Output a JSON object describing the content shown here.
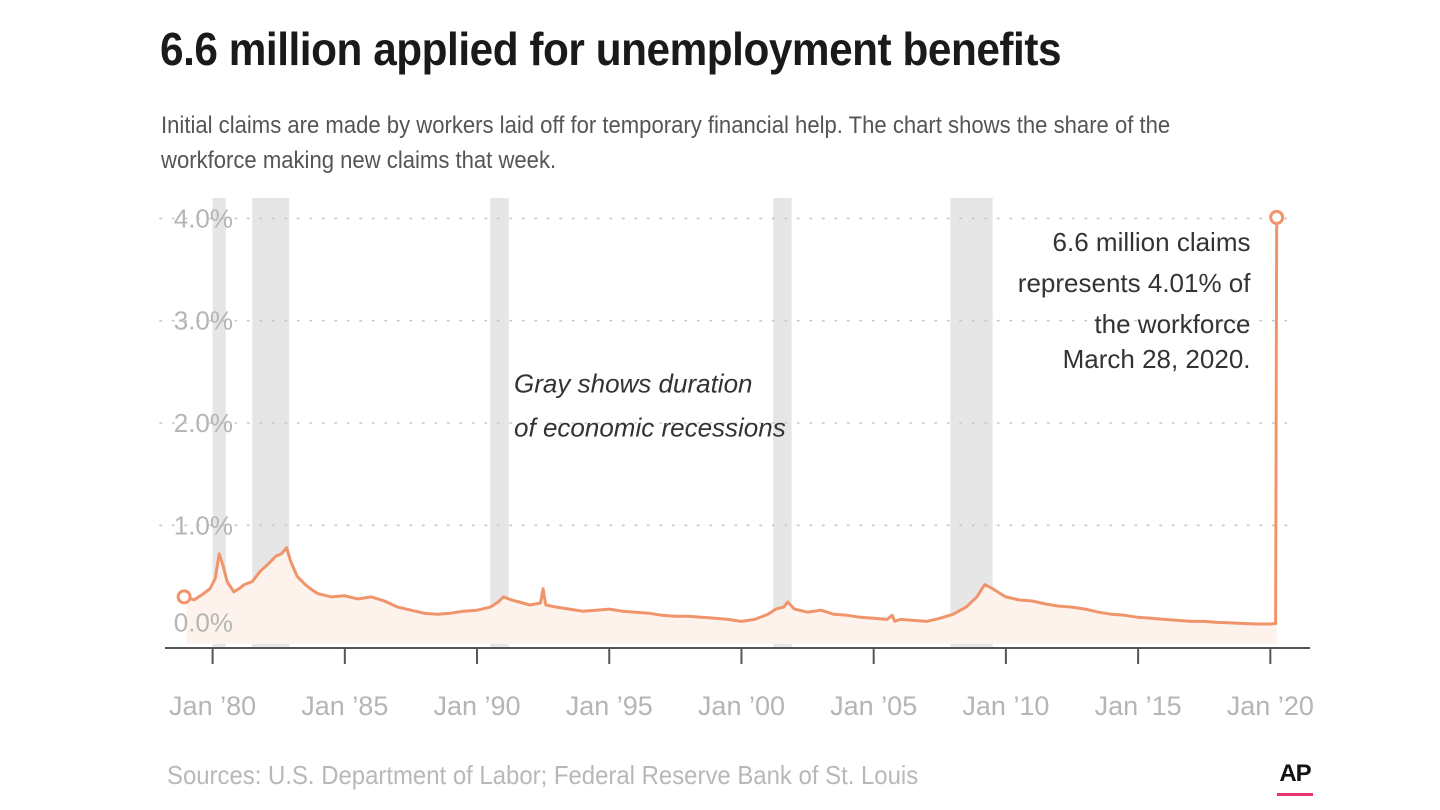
{
  "header": {
    "title": "6.6 million applied for unemployment benefits",
    "subtitle": "Initial claims are made by workers laid off for temporary financial help. The chart shows the share of the  workforce making new claims that week."
  },
  "footer": {
    "source": "Sources: U.S. Department of Labor; Federal Reserve Bank of St. Louis",
    "logo": "AP"
  },
  "colors": {
    "line": "#f0956b",
    "area": "#fdf3ec",
    "recession": "#e6e6e6",
    "grid": "#c8c8c8",
    "axis_text": "#b5b5b5",
    "annotation_text": "#333333"
  },
  "chart_data": {
    "type": "line",
    "xlabel": "",
    "ylabel": "",
    "xlim": [
      1978.2,
      2021.5
    ],
    "ylim": [
      -0.2,
      4.2
    ],
    "y_ticks": [
      {
        "value": 0,
        "label": "0.0%"
      },
      {
        "value": 1,
        "label": "1.0%"
      },
      {
        "value": 2,
        "label": "2.0%"
      },
      {
        "value": 3,
        "label": "3.0%"
      },
      {
        "value": 4,
        "label": "4.0%"
      }
    ],
    "x_ticks": [
      {
        "value": 1980,
        "label": "Jan ’80"
      },
      {
        "value": 1985,
        "label": "Jan ’85"
      },
      {
        "value": 1990,
        "label": "Jan ’90"
      },
      {
        "value": 1995,
        "label": "Jan ’95"
      },
      {
        "value": 2000,
        "label": "Jan ’00"
      },
      {
        "value": 2005,
        "label": "Jan ’05"
      },
      {
        "value": 2010,
        "label": "Jan ’10"
      },
      {
        "value": 2015,
        "label": "Jan ’15"
      },
      {
        "value": 2020,
        "label": "Jan ’20"
      }
    ],
    "grid": true,
    "recessions": [
      {
        "start": 1980.0,
        "end": 1980.5
      },
      {
        "start": 1981.5,
        "end": 1982.9
      },
      {
        "start": 1990.5,
        "end": 1991.2
      },
      {
        "start": 2001.2,
        "end": 2001.9
      },
      {
        "start": 2007.9,
        "end": 2009.5
      }
    ],
    "series": [
      {
        "x": [
          1979.0,
          1979.3,
          1979.6,
          1979.9,
          1980.1,
          1980.25,
          1980.4,
          1980.55,
          1980.8,
          1981.0,
          1981.2,
          1981.5,
          1981.8,
          1982.1,
          1982.4,
          1982.6,
          1982.8,
          1982.95,
          1983.2,
          1983.5,
          1983.8,
          1984.0,
          1984.5,
          1985.0,
          1985.5,
          1986.0,
          1986.5,
          1987.0,
          1987.5,
          1988.0,
          1988.5,
          1989.0,
          1989.5,
          1990.0,
          1990.5,
          1990.8,
          1991.0,
          1991.3,
          1991.6,
          1992.0,
          1992.4,
          1992.5,
          1992.6,
          1993.0,
          1993.5,
          1994.0,
          1994.5,
          1995.0,
          1995.5,
          1996.0,
          1996.5,
          1997.0,
          1997.5,
          1998.0,
          1998.5,
          1999.0,
          1999.5,
          2000.0,
          2000.5,
          2001.0,
          2001.3,
          2001.6,
          2001.75,
          2002.0,
          2002.5,
          2003.0,
          2003.5,
          2004.0,
          2004.5,
          2005.0,
          2005.5,
          2005.7,
          2005.8,
          2006.0,
          2006.5,
          2007.0,
          2007.5,
          2008.0,
          2008.5,
          2008.9,
          2009.2,
          2009.5,
          2009.8,
          2010.0,
          2010.5,
          2011.0,
          2011.5,
          2012.0,
          2012.5,
          2013.0,
          2013.5,
          2014.0,
          2014.5,
          2015.0,
          2015.5,
          2016.0,
          2016.5,
          2017.0,
          2017.5,
          2018.0,
          2018.5,
          2019.0,
          2019.5,
          2020.0,
          2020.15,
          2020.2,
          2020.24
        ],
        "y": [
          0.3,
          0.27,
          0.32,
          0.38,
          0.48,
          0.72,
          0.6,
          0.45,
          0.35,
          0.38,
          0.42,
          0.45,
          0.55,
          0.62,
          0.7,
          0.72,
          0.78,
          0.65,
          0.5,
          0.42,
          0.36,
          0.33,
          0.3,
          0.31,
          0.28,
          0.3,
          0.26,
          0.2,
          0.17,
          0.14,
          0.13,
          0.14,
          0.16,
          0.17,
          0.2,
          0.25,
          0.3,
          0.27,
          0.25,
          0.22,
          0.24,
          0.38,
          0.22,
          0.2,
          0.18,
          0.16,
          0.17,
          0.18,
          0.16,
          0.15,
          0.14,
          0.12,
          0.11,
          0.11,
          0.1,
          0.09,
          0.08,
          0.06,
          0.08,
          0.13,
          0.18,
          0.2,
          0.25,
          0.18,
          0.15,
          0.17,
          0.13,
          0.12,
          0.1,
          0.09,
          0.08,
          0.12,
          0.06,
          0.08,
          0.07,
          0.06,
          0.09,
          0.13,
          0.2,
          0.3,
          0.42,
          0.38,
          0.33,
          0.3,
          0.27,
          0.26,
          0.23,
          0.21,
          0.2,
          0.18,
          0.15,
          0.13,
          0.12,
          0.1,
          0.09,
          0.08,
          0.07,
          0.06,
          0.06,
          0.05,
          0.045,
          0.04,
          0.035,
          0.035,
          0.04,
          0.04,
          4.01
        ]
      }
    ],
    "annotations": [
      {
        "text": "Gray shows duration",
        "italic": true,
        "align": "left",
        "x": 1991.4,
        "y": 2.3
      },
      {
        "text": " of economic recessions",
        "italic": true,
        "align": "left",
        "x": 1991.4,
        "y": 1.87
      },
      {
        "text": "6.6 million claims",
        "italic": false,
        "align": "right",
        "x": 2019.25,
        "y": 3.68
      },
      {
        "text": "represents 4.01% of",
        "italic": false,
        "align": "right",
        "x": 2019.25,
        "y": 3.28
      },
      {
        "text": "the workforce",
        "italic": false,
        "align": "right",
        "x": 2019.25,
        "y": 2.88
      },
      {
        "text": "March 28, 2020.",
        "italic": false,
        "align": "right",
        "x": 2019.25,
        "y": 2.54
      }
    ]
  }
}
